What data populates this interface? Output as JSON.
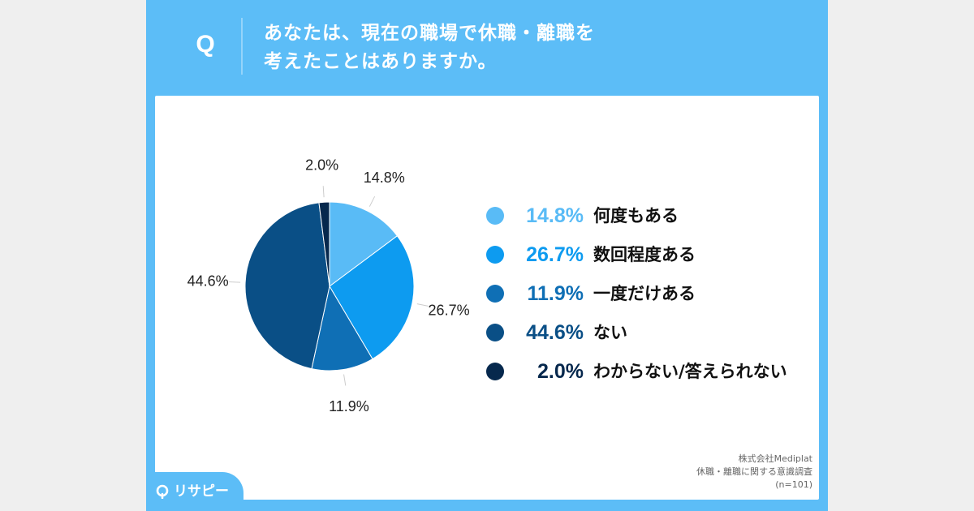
{
  "header": {
    "q_label": "Q",
    "question_lines": [
      "あなたは、現在の職場で休職・離職を",
      "考えたことはありますか。"
    ]
  },
  "chart_data": {
    "type": "pie",
    "title": "",
    "series": [
      {
        "label": "何度もある",
        "value": 14.8,
        "display": "14.8%",
        "color": "#59bbf6"
      },
      {
        "label": "数回程度ある",
        "value": 26.7,
        "display": "26.7%",
        "color": "#0d9bf0"
      },
      {
        "label": "一度だけある",
        "value": 11.9,
        "display": "11.9%",
        "color": "#0f6fb5"
      },
      {
        "label": "ない",
        "value": 44.6,
        "display": "44.6%",
        "color": "#0a4f86"
      },
      {
        "label": "わからない/答えられない",
        "value": 2.0,
        "display": "2.0%",
        "color": "#06284d"
      }
    ],
    "legend_placement": "right",
    "start_angle_deg": 0,
    "direction": "clockwise"
  },
  "source": {
    "lines": [
      "株式会社Mediplat",
      "休職・離職に関する意識調査",
      "(n=101)"
    ]
  },
  "brand": {
    "name": "リサピー"
  }
}
